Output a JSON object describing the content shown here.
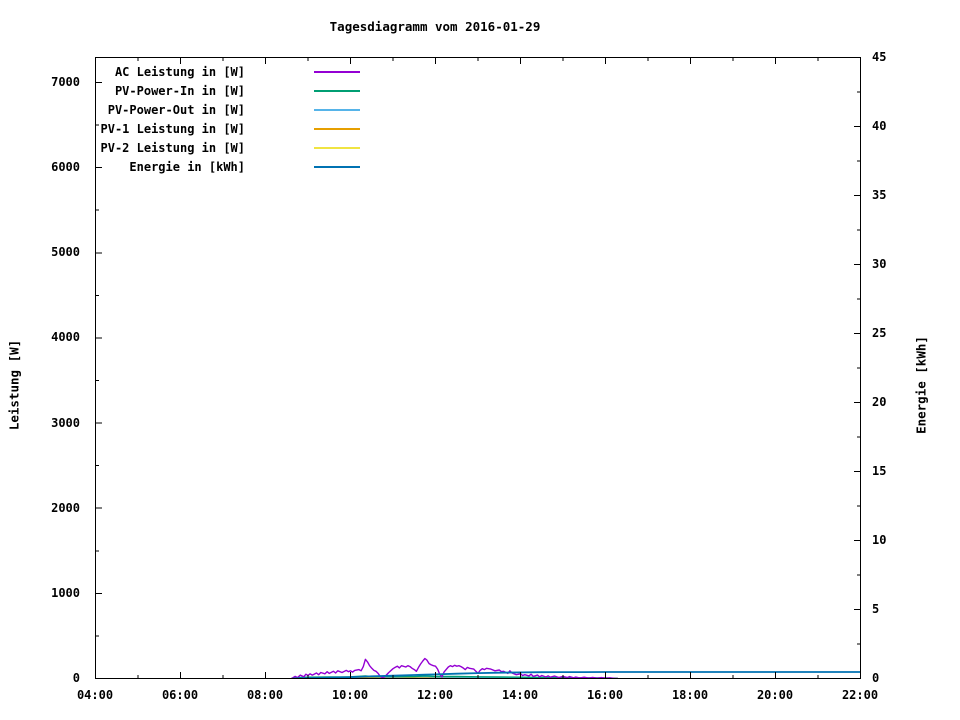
{
  "title": "Tagesdiagramm vom 2016-01-29",
  "axis_labels": {
    "left": "Leistung [W]",
    "right": "Energie [kWh]"
  },
  "chart_data": {
    "type": "line",
    "title": "Tagesdiagramm vom 2016-01-29",
    "xlabel": "",
    "ylabel_left": "Leistung [W]",
    "ylabel_right": "Energie [kWh]",
    "grid": false,
    "legend_position": "top-left-inside",
    "x_unit_hours": true,
    "x_range": [
      4,
      22
    ],
    "y_left_plot_max": 7294,
    "y_left_tick_range": [
      0,
      7000
    ],
    "y_right_range": [
      0,
      45
    ],
    "x_major_ticks": [
      {
        "t": 4,
        "label": "04:00"
      },
      {
        "t": 6,
        "label": "06:00"
      },
      {
        "t": 8,
        "label": "08:00"
      },
      {
        "t": 10,
        "label": "10:00"
      },
      {
        "t": 12,
        "label": "12:00"
      },
      {
        "t": 14,
        "label": "14:00"
      },
      {
        "t": 16,
        "label": "16:00"
      },
      {
        "t": 18,
        "label": "18:00"
      },
      {
        "t": 20,
        "label": "20:00"
      },
      {
        "t": 22,
        "label": "22:00"
      }
    ],
    "x_minor_ticks": [
      5,
      7,
      9,
      11,
      13,
      15,
      17,
      19,
      21
    ],
    "y_left_major_ticks": [
      {
        "v": 0,
        "label": "0"
      },
      {
        "v": 1000,
        "label": "1000"
      },
      {
        "v": 2000,
        "label": "2000"
      },
      {
        "v": 3000,
        "label": "3000"
      },
      {
        "v": 4000,
        "label": "4000"
      },
      {
        "v": 5000,
        "label": "5000"
      },
      {
        "v": 6000,
        "label": "6000"
      },
      {
        "v": 7000,
        "label": "7000"
      }
    ],
    "y_left_minor_ticks": [
      500,
      1500,
      2500,
      3500,
      4500,
      5500,
      6500
    ],
    "y_right_major_ticks": [
      {
        "v": 0,
        "label": "0"
      },
      {
        "v": 5,
        "label": "5"
      },
      {
        "v": 10,
        "label": "10"
      },
      {
        "v": 15,
        "label": "15"
      },
      {
        "v": 20,
        "label": "20"
      },
      {
        "v": 25,
        "label": "25"
      },
      {
        "v": 30,
        "label": "30"
      },
      {
        "v": 35,
        "label": "35"
      },
      {
        "v": 40,
        "label": "40"
      },
      {
        "v": 45,
        "label": "45"
      }
    ],
    "y_right_minor_ticks": [
      2.5,
      7.5,
      12.5,
      17.5,
      22.5,
      27.5,
      32.5,
      37.5,
      42.5
    ],
    "draw_order": [
      4,
      3,
      2,
      1,
      0,
      5
    ],
    "series": [
      {
        "name": "AC Leistung in [W]",
        "color": "#9400D3",
        "axis": "left",
        "stroke_width": 1.4,
        "points": [
          [
            8.62,
            2
          ],
          [
            8.7,
            25
          ],
          [
            8.75,
            10
          ],
          [
            8.82,
            40
          ],
          [
            8.9,
            20
          ],
          [
            8.95,
            50
          ],
          [
            9.0,
            35
          ],
          [
            9.05,
            55
          ],
          [
            9.1,
            40
          ],
          [
            9.2,
            65
          ],
          [
            9.25,
            45
          ],
          [
            9.3,
            70
          ],
          [
            9.4,
            55
          ],
          [
            9.45,
            80
          ],
          [
            9.5,
            60
          ],
          [
            9.6,
            85
          ],
          [
            9.65,
            65
          ],
          [
            9.7,
            90
          ],
          [
            9.8,
            70
          ],
          [
            9.9,
            95
          ],
          [
            9.95,
            80
          ],
          [
            10.0,
            90
          ],
          [
            10.05,
            75
          ],
          [
            10.1,
            95
          ],
          [
            10.2,
            105
          ],
          [
            10.25,
            90
          ],
          [
            10.3,
            140
          ],
          [
            10.35,
            225
          ],
          [
            10.4,
            195
          ],
          [
            10.45,
            150
          ],
          [
            10.5,
            120
          ],
          [
            10.55,
            95
          ],
          [
            10.6,
            85
          ],
          [
            10.65,
            60
          ],
          [
            10.7,
            25
          ],
          [
            10.75,
            12
          ],
          [
            10.8,
            18
          ],
          [
            10.9,
            70
          ],
          [
            11.0,
            115
          ],
          [
            11.05,
            130
          ],
          [
            11.1,
            145
          ],
          [
            11.15,
            125
          ],
          [
            11.2,
            150
          ],
          [
            11.3,
            135
          ],
          [
            11.35,
            150
          ],
          [
            11.4,
            140
          ],
          [
            11.45,
            120
          ],
          [
            11.5,
            105
          ],
          [
            11.55,
            85
          ],
          [
            11.6,
            130
          ],
          [
            11.65,
            170
          ],
          [
            11.7,
            205
          ],
          [
            11.75,
            235
          ],
          [
            11.8,
            215
          ],
          [
            11.85,
            175
          ],
          [
            11.9,
            160
          ],
          [
            11.95,
            150
          ],
          [
            12.0,
            145
          ],
          [
            12.05,
            110
          ],
          [
            12.1,
            50
          ],
          [
            12.15,
            20
          ],
          [
            12.2,
            75
          ],
          [
            12.3,
            135
          ],
          [
            12.35,
            150
          ],
          [
            12.4,
            140
          ],
          [
            12.45,
            155
          ],
          [
            12.5,
            145
          ],
          [
            12.55,
            150
          ],
          [
            12.6,
            140
          ],
          [
            12.65,
            125
          ],
          [
            12.7,
            105
          ],
          [
            12.75,
            130
          ],
          [
            12.8,
            120
          ],
          [
            12.9,
            110
          ],
          [
            12.95,
            85
          ],
          [
            13.0,
            60
          ],
          [
            13.05,
            95
          ],
          [
            13.1,
            115
          ],
          [
            13.15,
            105
          ],
          [
            13.2,
            120
          ],
          [
            13.3,
            110
          ],
          [
            13.4,
            90
          ],
          [
            13.5,
            100
          ],
          [
            13.55,
            80
          ],
          [
            13.6,
            85
          ],
          [
            13.7,
            60
          ],
          [
            13.75,
            90
          ],
          [
            13.8,
            65
          ],
          [
            13.9,
            45
          ],
          [
            14.0,
            55
          ],
          [
            14.05,
            35
          ],
          [
            14.1,
            45
          ],
          [
            14.2,
            30
          ],
          [
            14.25,
            50
          ],
          [
            14.3,
            25
          ],
          [
            14.4,
            40
          ],
          [
            14.45,
            20
          ],
          [
            14.5,
            35
          ],
          [
            14.6,
            18
          ],
          [
            14.65,
            32
          ],
          [
            14.7,
            15
          ],
          [
            14.8,
            28
          ],
          [
            14.9,
            12
          ],
          [
            15.0,
            25
          ],
          [
            15.1,
            10
          ],
          [
            15.15,
            22
          ],
          [
            15.25,
            8
          ],
          [
            15.3,
            18
          ],
          [
            15.4,
            6
          ],
          [
            15.5,
            15
          ],
          [
            15.6,
            5
          ],
          [
            15.7,
            12
          ],
          [
            15.8,
            4
          ],
          [
            15.9,
            10
          ],
          [
            16.0,
            3
          ],
          [
            16.1,
            8
          ],
          [
            16.2,
            2
          ],
          [
            16.28,
            0
          ]
        ]
      },
      {
        "name": "PV-Power-In in [W]",
        "color": "#009E73",
        "axis": "left",
        "stroke_width": 1.4,
        "points": [
          [
            8.62,
            0
          ],
          [
            8.8,
            12
          ],
          [
            9.0,
            15
          ],
          [
            9.5,
            18
          ],
          [
            10.0,
            20
          ],
          [
            10.35,
            30
          ],
          [
            10.5,
            22
          ],
          [
            11.0,
            22
          ],
          [
            11.5,
            24
          ],
          [
            11.75,
            30
          ],
          [
            12.0,
            25
          ],
          [
            12.5,
            24
          ],
          [
            13.0,
            20
          ],
          [
            13.5,
            18
          ],
          [
            14.0,
            15
          ],
          [
            14.5,
            12
          ],
          [
            15.0,
            10
          ],
          [
            15.5,
            8
          ],
          [
            16.0,
            6
          ],
          [
            16.28,
            0
          ]
        ]
      },
      {
        "name": "PV-Power-Out in [W]",
        "color": "#56B4E9",
        "axis": "left",
        "stroke_width": 1.4,
        "points": [
          [
            8.62,
            0
          ],
          [
            9.0,
            10
          ],
          [
            10.0,
            14
          ],
          [
            10.35,
            22
          ],
          [
            11.0,
            16
          ],
          [
            11.75,
            22
          ],
          [
            12.0,
            18
          ],
          [
            13.0,
            14
          ],
          [
            14.0,
            10
          ],
          [
            15.0,
            7
          ],
          [
            16.0,
            4
          ],
          [
            16.28,
            0
          ]
        ]
      },
      {
        "name": "PV-1 Leistung in [W]",
        "color": "#E69F00",
        "axis": "left",
        "stroke_width": 1.4,
        "points": [
          [
            8.62,
            0
          ],
          [
            10.0,
            5
          ],
          [
            12.0,
            6
          ],
          [
            14.0,
            4
          ],
          [
            16.28,
            0
          ]
        ]
      },
      {
        "name": "PV-2 Leistung in [W]",
        "color": "#F0E442",
        "axis": "left",
        "stroke_width": 1.4,
        "points": [
          [
            8.62,
            0
          ],
          [
            10.0,
            4
          ],
          [
            12.0,
            5
          ],
          [
            14.0,
            3
          ],
          [
            16.28,
            0
          ]
        ]
      },
      {
        "name": "Energie in [kWh]",
        "color": "#0072B2",
        "axis": "right",
        "stroke_width": 1.8,
        "points": [
          [
            8.66,
            0.005
          ],
          [
            9.0,
            0.03
          ],
          [
            9.5,
            0.06
          ],
          [
            10.0,
            0.1
          ],
          [
            10.35,
            0.14
          ],
          [
            10.5,
            0.16
          ],
          [
            11.0,
            0.2
          ],
          [
            11.5,
            0.25
          ],
          [
            11.75,
            0.28
          ],
          [
            12.0,
            0.3
          ],
          [
            12.5,
            0.35
          ],
          [
            13.0,
            0.39
          ],
          [
            13.5,
            0.42
          ],
          [
            14.0,
            0.44
          ],
          [
            14.5,
            0.455
          ],
          [
            15.0,
            0.462
          ],
          [
            15.5,
            0.467
          ],
          [
            16.0,
            0.47
          ],
          [
            16.3,
            0.47
          ],
          [
            22.0,
            0.47
          ]
        ]
      }
    ]
  }
}
